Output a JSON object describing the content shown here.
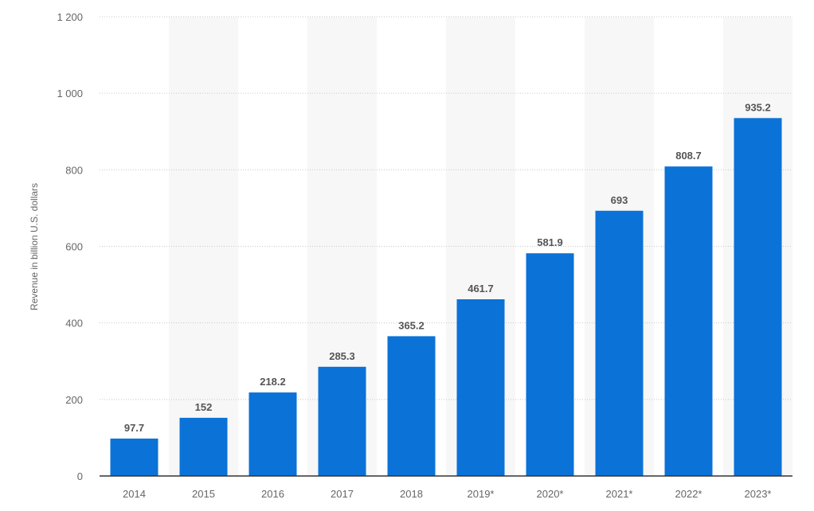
{
  "chart_data": {
    "type": "bar",
    "title": "",
    "xlabel": "",
    "ylabel": "Revenue in billion U.S. dollars",
    "ylim": [
      0,
      1200
    ],
    "yticks": [
      0,
      200,
      400,
      600,
      800,
      1000,
      1200
    ],
    "ytick_labels": [
      "0",
      "200",
      "400",
      "600",
      "800",
      "1 000",
      "1 200"
    ],
    "grid": true,
    "categories": [
      "2014",
      "2015",
      "2016",
      "2017",
      "2018",
      "2019*",
      "2020*",
      "2021*",
      "2022*",
      "2023*"
    ],
    "values": [
      97.7,
      152,
      218.2,
      285.3,
      365.2,
      461.7,
      581.9,
      693,
      808.7,
      935.2
    ],
    "value_labels": [
      "97.7",
      "152",
      "218.2",
      "285.3",
      "365.2",
      "461.7",
      "581.9",
      "693",
      "808.7",
      "935.2"
    ],
    "colors": {
      "bar": "#0b72d8",
      "band": "#f7f7f7",
      "grid": "#c8c8c8",
      "axis": "#333333"
    }
  }
}
